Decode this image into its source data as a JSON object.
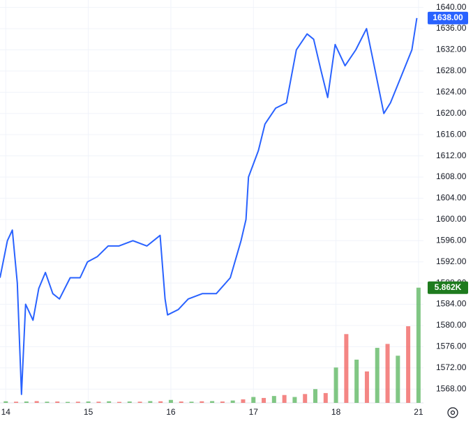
{
  "chart_data": {
    "type": "line",
    "xlim": [
      -0.07,
      5.06
    ],
    "xticks": [
      {
        "value": 0,
        "label": "14"
      },
      {
        "value": 1,
        "label": "15"
      },
      {
        "value": 2,
        "label": "16"
      },
      {
        "value": 3,
        "label": "17"
      },
      {
        "value": 4,
        "label": "18"
      },
      {
        "value": 5,
        "label": "21"
      }
    ],
    "ylim": [
      1565.4,
      1641.4
    ],
    "yticks": [
      {
        "value": 1568,
        "label": "1568.00"
      },
      {
        "value": 1572,
        "label": "1572.00"
      },
      {
        "value": 1576,
        "label": "1576.00"
      },
      {
        "value": 1580,
        "label": "1580.00"
      },
      {
        "value": 1584,
        "label": "1584.00"
      },
      {
        "value": 1588,
        "label": "1588.00"
      },
      {
        "value": 1592,
        "label": "1592.00"
      },
      {
        "value": 1596,
        "label": "1596.00"
      },
      {
        "value": 1600,
        "label": "1600.00"
      },
      {
        "value": 1604,
        "label": "1604.00"
      },
      {
        "value": 1608,
        "label": "1608.00"
      },
      {
        "value": 1612,
        "label": "1612.00"
      },
      {
        "value": 1616,
        "label": "1616.00"
      },
      {
        "value": 1620,
        "label": "1620.00"
      },
      {
        "value": 1624,
        "label": "1624.00"
      },
      {
        "value": 1628,
        "label": "1628.00"
      },
      {
        "value": 1632,
        "label": "1632.00"
      },
      {
        "value": 1636,
        "label": "1636.00"
      },
      {
        "value": 1640,
        "label": "1640.00"
      }
    ],
    "y2lim": [
      0,
      20500
    ],
    "grid": true,
    "series": [
      {
        "color": "#2962ff",
        "x": [
          -0.07,
          0.02,
          0.08,
          0.14,
          0.19,
          0.24,
          0.33,
          0.4,
          0.48,
          0.57,
          0.65,
          0.78,
          0.9,
          0.99,
          1.11,
          1.24,
          1.37,
          1.54,
          1.71,
          1.87,
          1.93,
          1.96,
          2.09,
          2.21,
          2.38,
          2.55,
          2.72,
          2.85,
          2.91,
          2.94,
          3.06,
          3.14,
          3.27,
          3.4,
          3.52,
          3.65,
          3.73,
          3.82,
          3.9,
          3.99,
          4.11,
          4.24,
          4.37,
          4.45,
          4.58,
          4.66,
          4.79,
          4.92,
          4.98
        ],
        "values": [
          1589,
          1596,
          1598,
          1588,
          1567,
          1584,
          1581,
          1587,
          1590,
          1586,
          1585,
          1589,
          1589,
          1592,
          1593,
          1595,
          1595,
          1596,
          1595,
          1597,
          1585,
          1582,
          1583,
          1585,
          1586,
          1586,
          1589,
          1596,
          1600,
          1608,
          1613,
          1618,
          1621,
          1622,
          1632,
          1635,
          1634,
          1628,
          1623,
          1633,
          1629,
          1632,
          1636,
          1630,
          1620,
          1622,
          1627,
          1632,
          1638
        ],
        "last_label": {
          "value": 1638,
          "label": "1638.00"
        }
      },
      {
        "type": "bar",
        "axis": "y2",
        "x": [
          0,
          0.125,
          0.25,
          0.375,
          0.5,
          0.625,
          0.75,
          0.875,
          1,
          1.125,
          1.25,
          1.375,
          1.5,
          1.625,
          1.75,
          1.875,
          2,
          2.125,
          2.25,
          2.375,
          2.5,
          2.625,
          2.75,
          2.875,
          3,
          3.125,
          3.25,
          3.375,
          3.5,
          3.625,
          3.75,
          3.875,
          4,
          4.125,
          4.25,
          4.375,
          4.5,
          4.625,
          4.75,
          4.875,
          5
        ],
        "values": [
          80,
          60,
          70,
          90,
          60,
          70,
          50,
          60,
          70,
          60,
          80,
          50,
          70,
          60,
          90,
          80,
          150,
          70,
          60,
          80,
          90,
          70,
          120,
          180,
          300,
          250,
          350,
          400,
          300,
          450,
          700,
          500,
          1800,
          3500,
          2200,
          1600,
          2800,
          3000,
          2400,
          3900,
          5862
        ],
        "colors": [
          "#4caf50",
          "#f05350",
          "#4caf50",
          "#f05350",
          "#4caf50",
          "#f05350",
          "#4caf50",
          "#f05350",
          "#4caf50",
          "#f05350",
          "#4caf50",
          "#f05350",
          "#4caf50",
          "#f05350",
          "#4caf50",
          "#f05350",
          "#4caf50",
          "#f05350",
          "#4caf50",
          "#f05350",
          "#4caf50",
          "#f05350",
          "#4caf50",
          "#f05350",
          "#4caf50",
          "#f05350",
          "#4caf50",
          "#f05350",
          "#4caf50",
          "#f05350",
          "#4caf50",
          "#f05350",
          "#4caf50",
          "#f05350",
          "#4caf50",
          "#f05350",
          "#4caf50",
          "#f05350",
          "#4caf50",
          "#f05350",
          "#4caf50"
        ],
        "last_label": {
          "value": 5862,
          "label": "5.862K"
        },
        "label_color": "#1e7b1e"
      }
    ]
  }
}
